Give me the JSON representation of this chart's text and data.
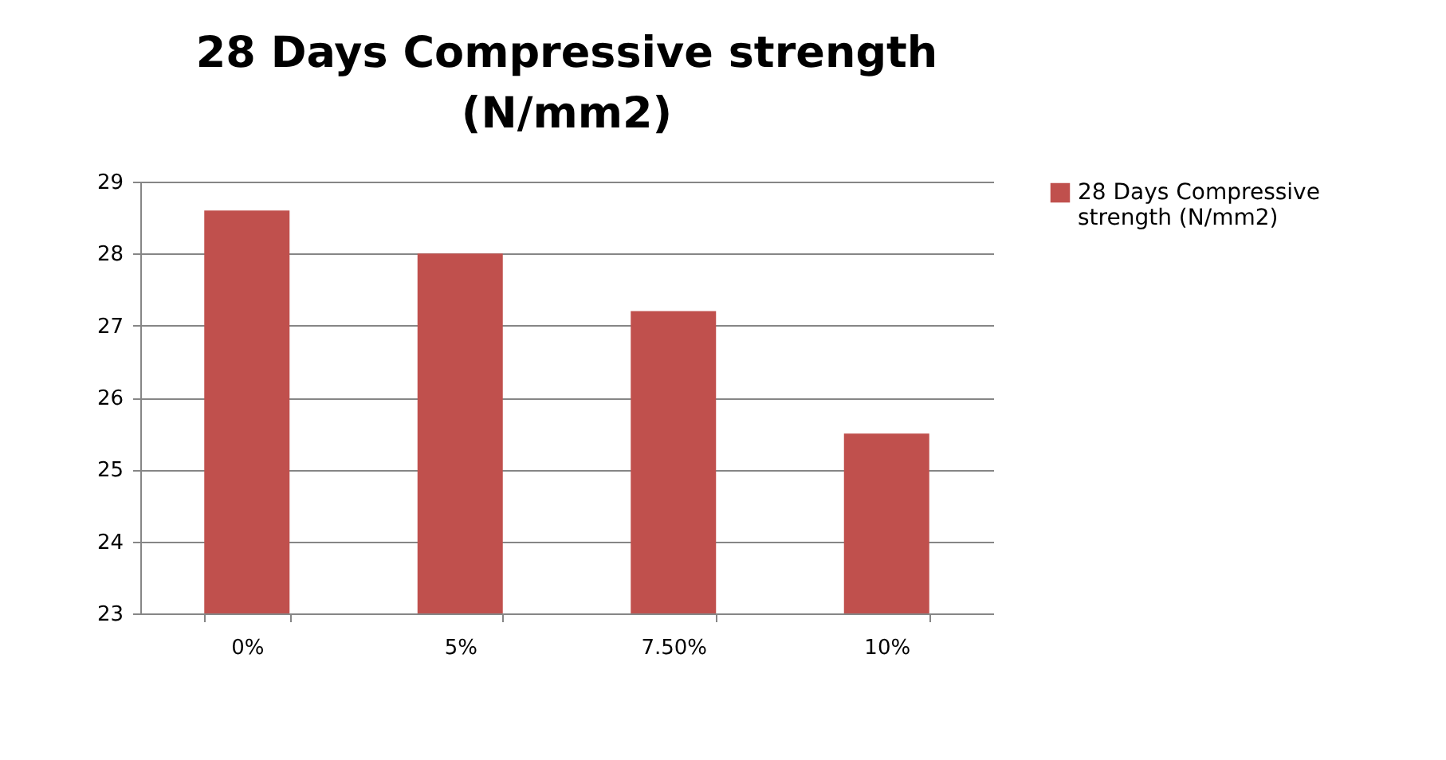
{
  "chart_data": {
    "type": "bar",
    "title": "28 Days Compressive strength (N/mm2)",
    "categories": [
      "0%",
      "5%",
      "7.50%",
      "10%"
    ],
    "series": [
      {
        "name": "28 Days Compressive strength (N/mm2)",
        "color": "#c0504d",
        "values": [
          28.6,
          28.0,
          27.2,
          25.5
        ]
      }
    ],
    "ylim": [
      23,
      29
    ],
    "yticks": [
      23,
      24,
      25,
      26,
      27,
      28,
      29
    ],
    "grid": "y",
    "legend": "right"
  }
}
